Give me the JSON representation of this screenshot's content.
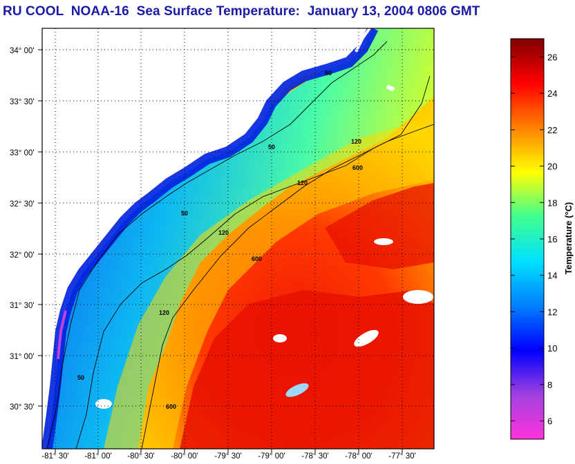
{
  "title": "RU COOL  NOAA-16  Sea Surface Temperature:  January 13, 2004 0806 GMT",
  "map": {
    "lat_labels": [
      "34° 00'",
      "33° 30'",
      "33° 00'",
      "32° 30'",
      "32° 00'",
      "31° 30'",
      "31° 00'",
      "30° 30'"
    ],
    "lon_labels": [
      "-81° 30'",
      "-81° 00'",
      "-80° 30'",
      "-80° 00'",
      "-79° 30'",
      "-79° 00'",
      "-78° 30'",
      "-78° 00'",
      "-77° 30'"
    ],
    "contour_labels": [
      "50",
      "120",
      "600"
    ],
    "colors": {
      "land": "#ffffff",
      "cloud": "#ffffff",
      "grid": "#000000"
    }
  },
  "colorbar": {
    "title": "Temperature (°C)",
    "ticks": [
      "6",
      "8",
      "10",
      "12",
      "14",
      "16",
      "18",
      "20",
      "22",
      "24",
      "26"
    ],
    "range": [
      5,
      27
    ],
    "stops": [
      "#ff33dd",
      "#a040e0",
      "#0000ff",
      "#0080ff",
      "#00e0ff",
      "#40ff90",
      "#ffff00",
      "#ff8000",
      "#ff0000",
      "#800000"
    ]
  }
}
